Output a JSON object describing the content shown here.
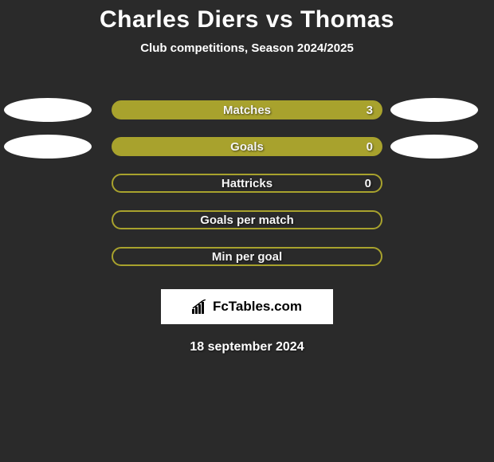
{
  "title": "Charles Diers vs Thomas",
  "subtitle": "Club competitions, Season 2024/2025",
  "colors": {
    "background": "#2a2a2a",
    "bar_filled": "#a8a22d",
    "bar_outline": "#a8a22d",
    "pill": "#ffffff",
    "text": "#ffffff"
  },
  "stats": [
    {
      "label": "Matches",
      "value": "3",
      "filled": true,
      "has_value": true,
      "left_pill": true,
      "right_pill": true
    },
    {
      "label": "Goals",
      "value": "0",
      "filled": true,
      "has_value": true,
      "left_pill": true,
      "right_pill": true
    },
    {
      "label": "Hattricks",
      "value": "0",
      "filled": false,
      "has_value": true,
      "left_pill": false,
      "right_pill": false
    },
    {
      "label": "Goals per match",
      "value": "",
      "filled": false,
      "has_value": false,
      "left_pill": false,
      "right_pill": false
    },
    {
      "label": "Min per goal",
      "value": "",
      "filled": false,
      "has_value": false,
      "left_pill": false,
      "right_pill": false
    }
  ],
  "logo_text": "FcTables.com",
  "date": "18 september 2024"
}
